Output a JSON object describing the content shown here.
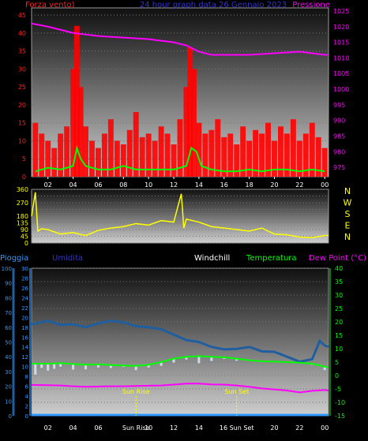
{
  "header": {
    "wind_label": "Forza vento)",
    "title": "24 hour graph data  26 Gennaio 2023",
    "pressure_label": "Pressione"
  },
  "bottom_header": {
    "rain_label": "Pioggia",
    "humidity_label": "Umidita",
    "windchill_label": "Windchill",
    "temperature_label": "Temperatura",
    "dewpoint_label": "Dew Point (°C)"
  },
  "sun": {
    "rise_label": "Sun Rise",
    "set_label": "Sun Set"
  },
  "colors": {
    "wind": "#ff0000",
    "gust_avg": "#00ff00",
    "pressure": "#ff00ff",
    "direction": "#ffff00",
    "humidity": "#1f5fa0",
    "temperature": "#00ff00",
    "windchill": "#ffffff",
    "dewpoint": "#ff00ff",
    "rain": "#3399ff",
    "tick_red": "#ff2020",
    "title_blue": "#3333cc"
  },
  "x_ticks": [
    "02",
    "04",
    "06",
    "08",
    "10",
    "12",
    "14",
    "16",
    "18",
    "20",
    "22",
    "00"
  ],
  "x_ticks_bottom": [
    "02",
    "04",
    "06",
    "Sun Rise",
    "10",
    "12",
    "14",
    "16 Sun Set",
    "20",
    "22",
    "00"
  ],
  "chart_data": [
    {
      "type": "area",
      "panel": "wind-pressure",
      "y_left_ticks": [
        0,
        5,
        10,
        15,
        20,
        25,
        30,
        35,
        40,
        45
      ],
      "ylim_left": [
        0,
        47
      ],
      "y_right_ticks": [
        975,
        980,
        985,
        990,
        995,
        1000,
        1005,
        1010,
        1015,
        1020,
        1025
      ],
      "ylim_right": [
        972,
        1026
      ],
      "x_range": [
        0.7,
        24.3
      ],
      "series": [
        {
          "name": "Forza vento",
          "kind": "wind-bars",
          "x": [
            1.0,
            1.5,
            2.0,
            2.5,
            3.0,
            3.5,
            4.0,
            4.3,
            4.6,
            5.0,
            5.5,
            6.0,
            6.5,
            7.0,
            7.5,
            8.0,
            8.5,
            9.0,
            9.5,
            10.0,
            10.5,
            11.0,
            11.5,
            12.0,
            12.5,
            13.0,
            13.3,
            13.6,
            14.0,
            14.5,
            15.0,
            15.5,
            16.0,
            16.5,
            17.0,
            17.5,
            18.0,
            18.5,
            19.0,
            19.5,
            20.0,
            20.5,
            21.0,
            21.5,
            22.0,
            22.5,
            23.0,
            23.5,
            24.0
          ],
          "values": [
            15,
            12,
            10,
            8,
            12,
            14,
            30,
            42,
            25,
            14,
            10,
            8,
            12,
            16,
            10,
            9,
            13,
            18,
            11,
            12,
            10,
            14,
            12,
            9,
            16,
            25,
            36,
            30,
            15,
            12,
            13,
            16,
            11,
            12,
            9,
            14,
            10,
            13,
            12,
            15,
            10,
            14,
            12,
            16,
            10,
            12,
            15,
            11,
            8
          ]
        },
        {
          "name": "Average",
          "kind": "line",
          "x": [
            1.0,
            2.0,
            3.0,
            4.0,
            4.3,
            4.6,
            5.0,
            6.0,
            7.0,
            8.0,
            9.0,
            10.0,
            11.0,
            12.0,
            13.0,
            13.4,
            13.8,
            14.2,
            15.0,
            16.0,
            17.0,
            18.0,
            19.0,
            20.0,
            21.0,
            22.0,
            23.0,
            24.0
          ],
          "values": [
            1.5,
            2.5,
            2,
            3,
            8,
            5,
            3,
            2,
            2,
            3,
            2,
            2,
            2,
            2,
            3,
            8,
            7,
            3,
            2,
            1.5,
            1.5,
            2,
            1.5,
            2,
            2,
            1.5,
            2,
            1.5
          ]
        },
        {
          "name": "Pressione",
          "kind": "line",
          "x": [
            0.7,
            2,
            4,
            5,
            6,
            8,
            10,
            12,
            13,
            14,
            15,
            16,
            18,
            20,
            22,
            24,
            24.3
          ],
          "values": [
            1021,
            1020,
            1018,
            1017.5,
            1017,
            1016.5,
            1016,
            1015,
            1014,
            1012,
            1011,
            1011,
            1011,
            1011.5,
            1012,
            1011,
            1011
          ]
        }
      ]
    },
    {
      "type": "line",
      "panel": "wind-direction",
      "y_ticks": [
        0,
        45,
        90,
        135,
        180,
        225,
        270,
        315,
        360
      ],
      "y_labels_shown": [
        0,
        45,
        90,
        135,
        180,
        270,
        360
      ],
      "ylim": [
        0,
        360
      ],
      "compass_labels": [
        "N",
        "W",
        "S",
        "E",
        "N"
      ],
      "series": [
        {
          "name": "Direzione",
          "x": [
            0.7,
            1.0,
            1.2,
            1.5,
            2,
            3,
            4,
            5,
            6,
            7,
            8,
            9,
            10,
            11,
            12,
            12.6,
            12.8,
            13,
            14,
            15,
            16,
            17,
            18,
            19,
            20,
            21,
            22,
            23,
            24,
            24.3
          ],
          "values": [
            180,
            340,
            80,
            95,
            90,
            60,
            70,
            50,
            85,
            100,
            110,
            130,
            120,
            150,
            140,
            330,
            100,
            160,
            140,
            110,
            100,
            90,
            80,
            100,
            60,
            55,
            40,
            35,
            50,
            50
          ]
        }
      ]
    },
    {
      "type": "line",
      "panel": "temp-humidity-rain",
      "y_rain_ticks": [
        0,
        10,
        20,
        30,
        40,
        50,
        60,
        70,
        80,
        90,
        100
      ],
      "y_humidity_ticks": [
        0,
        2,
        4,
        6,
        8,
        10,
        12,
        14,
        16,
        18,
        20,
        22,
        24,
        26,
        28,
        30
      ],
      "y_temp_ticks": [
        -15,
        -10,
        -5,
        0,
        5,
        10,
        15,
        20,
        25,
        30,
        35,
        40
      ],
      "ylim_rain": [
        0,
        100
      ],
      "ylim_temp": [
        -15,
        40
      ],
      "series": [
        {
          "name": "Umidita",
          "x": [
            0.7,
            2,
            3,
            4,
            5,
            6,
            7,
            8,
            9,
            10,
            11,
            12,
            13,
            14,
            15,
            16,
            17,
            18,
            19,
            20,
            21,
            22,
            23,
            23.6,
            24,
            24.3
          ],
          "values": [
            18.6,
            19.3,
            18.5,
            18.6,
            18.0,
            18.8,
            19.3,
            19.0,
            18.2,
            18.0,
            17.6,
            16.5,
            15.4,
            15.0,
            14.0,
            13.5,
            13.6,
            14.0,
            13.1,
            13.0,
            12.0,
            11.0,
            11.5,
            15.2,
            14.3,
            14.0
          ]
        },
        {
          "name": "Temperatura",
          "x": [
            0.7,
            2,
            3,
            4,
            5,
            6,
            7,
            8,
            9,
            10,
            11,
            12,
            13,
            14,
            15,
            16,
            17,
            18,
            19,
            20,
            21,
            22,
            23,
            24,
            24.3
          ],
          "values": [
            4.4,
            4.4,
            4.6,
            4.3,
            4.0,
            4.2,
            3.9,
            3.7,
            3.6,
            4.0,
            5.0,
            6.3,
            7.0,
            7.2,
            7.0,
            6.8,
            6.3,
            5.7,
            5.3,
            5.2,
            5.0,
            4.8,
            4.4,
            3.3,
            3.0
          ]
        },
        {
          "name": "Windchill",
          "x": [
            1,
            1.5,
            2,
            2.5,
            3,
            4,
            5,
            6,
            7,
            8,
            9,
            10,
            11,
            12,
            13,
            14,
            15,
            16,
            17,
            18,
            19,
            20,
            21,
            22,
            23,
            24
          ],
          "values": [
            0.3,
            2.8,
            1.8,
            2.5,
            3.3,
            2.2,
            2.3,
            3.0,
            2.8,
            3.2,
            2.0,
            3.0,
            3.6,
            4.8,
            6.0,
            4.6,
            5.4,
            6.2,
            5.5,
            5.8,
            5.0,
            5.1,
            4.8,
            4.6,
            4.0,
            2.0
          ]
        },
        {
          "name": "Dew Point",
          "x": [
            0.7,
            2,
            3,
            4,
            5,
            6,
            7,
            8,
            9,
            10,
            11,
            12,
            13,
            14,
            15,
            16,
            17,
            18,
            19,
            20,
            21,
            22,
            23,
            24,
            24.3
          ],
          "values": [
            -3.5,
            -3.6,
            -3.7,
            -4.0,
            -4.2,
            -4.1,
            -4.0,
            -4.0,
            -3.9,
            -3.8,
            -3.7,
            -3.4,
            -3.0,
            -3.0,
            -3.3,
            -3.4,
            -3.7,
            -4.2,
            -4.8,
            -5.2,
            -5.6,
            -6.3,
            -5.7,
            -5.4,
            -5.6
          ]
        },
        {
          "name": "Pioggia",
          "x": [
            0.7,
            24.3
          ],
          "values": [
            0,
            0
          ]
        }
      ],
      "sunrise_x": 9.0,
      "sunset_x": 17.0
    }
  ]
}
